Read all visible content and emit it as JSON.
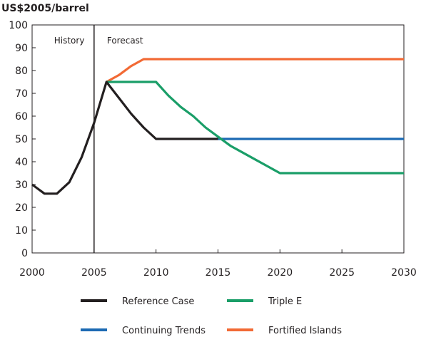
{
  "chart_data": {
    "type": "line",
    "title": "",
    "xlabel": "",
    "ylabel": "US$2005/barrel",
    "xlim": [
      2000,
      2030
    ],
    "ylim": [
      0,
      100
    ],
    "x_ticks": [
      "2000",
      "2005",
      "2010",
      "2015",
      "2020",
      "2025",
      "2030"
    ],
    "y_ticks": [
      "0",
      "10",
      "20",
      "30",
      "40",
      "50",
      "60",
      "70",
      "80",
      "90",
      "100"
    ],
    "grid": false,
    "legend_position": "bottom",
    "annotations": [
      {
        "text": "History",
        "x": 2003
      },
      {
        "text": "Forecast",
        "x": 2007.5
      }
    ],
    "divider_year": 2005,
    "series": [
      {
        "name": "Reference Case",
        "color": "#231f20",
        "points": [
          [
            2000,
            30
          ],
          [
            2001,
            26
          ],
          [
            2002,
            26
          ],
          [
            2003,
            31
          ],
          [
            2004,
            42
          ],
          [
            2005,
            57
          ],
          [
            2006,
            75
          ],
          [
            2007,
            68
          ],
          [
            2008,
            61
          ],
          [
            2009,
            55
          ],
          [
            2010,
            50
          ],
          [
            2011,
            50
          ],
          [
            2012,
            50
          ],
          [
            2013,
            50
          ],
          [
            2014,
            50
          ],
          [
            2015,
            50
          ]
        ]
      },
      {
        "name": "Triple E",
        "color": "#1a9e68",
        "points": [
          [
            2006,
            75
          ],
          [
            2007,
            75
          ],
          [
            2008,
            75
          ],
          [
            2009,
            75
          ],
          [
            2010,
            75
          ],
          [
            2011,
            69
          ],
          [
            2012,
            64
          ],
          [
            2013,
            60
          ],
          [
            2014,
            55
          ],
          [
            2015,
            51
          ],
          [
            2016,
            47
          ],
          [
            2017,
            44
          ],
          [
            2018,
            41
          ],
          [
            2019,
            38
          ],
          [
            2020,
            35
          ],
          [
            2025,
            35
          ],
          [
            2030,
            35
          ]
        ]
      },
      {
        "name": "Continuing Trends",
        "color": "#1c6ab3",
        "points": [
          [
            2015,
            50
          ],
          [
            2020,
            50
          ],
          [
            2025,
            50
          ],
          [
            2030,
            50
          ]
        ]
      },
      {
        "name": "Fortified Islands",
        "color": "#f26a35",
        "points": [
          [
            2006,
            75
          ],
          [
            2007,
            78
          ],
          [
            2008,
            82
          ],
          [
            2009,
            85
          ],
          [
            2010,
            85
          ],
          [
            2015,
            85
          ],
          [
            2020,
            85
          ],
          [
            2025,
            85
          ],
          [
            2030,
            85
          ]
        ]
      }
    ]
  }
}
